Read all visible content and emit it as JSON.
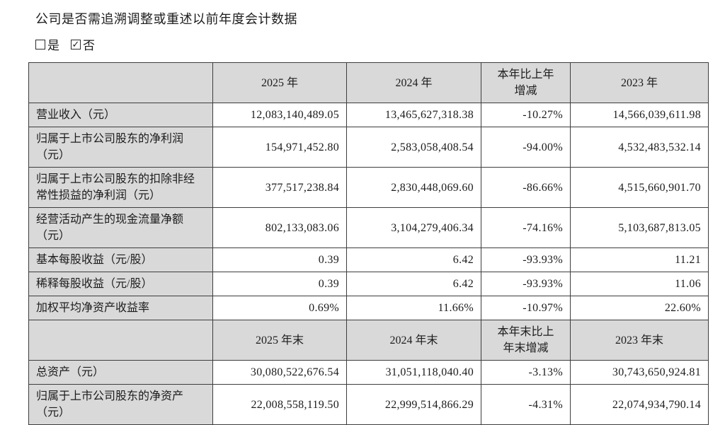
{
  "page": {
    "question": "公司是否需追溯调整或重述以前年度会计数据",
    "options": [
      {
        "label": "是",
        "checked": false
      },
      {
        "label": "否",
        "checked": true
      }
    ],
    "icons": {
      "checkmark": "✓"
    }
  },
  "table": {
    "period_header": [
      "",
      "2025 年",
      "2024 年",
      "本年比上年增减",
      "2023 年"
    ],
    "period_rows": [
      {
        "label": "营业收入（元）",
        "y2025": "12,083,140,489.05",
        "y2024": "13,465,627,318.38",
        "change": "-10.27%",
        "y2023": "14,566,039,611.98"
      },
      {
        "label": "归属于上市公司股东的净利润（元）",
        "y2025": "154,971,452.80",
        "y2024": "2,583,058,408.54",
        "change": "-94.00%",
        "y2023": "4,532,483,532.14"
      },
      {
        "label": "归属于上市公司股东的扣除非经常性损益的净利润（元）",
        "y2025": "377,517,238.84",
        "y2024": "2,830,448,069.60",
        "change": "-86.66%",
        "y2023": "4,515,660,901.70"
      },
      {
        "label": "经营活动产生的现金流量净额（元）",
        "y2025": "802,133,083.06",
        "y2024": "3,104,279,406.34",
        "change": "-74.16%",
        "y2023": "5,103,687,813.05"
      },
      {
        "label": "基本每股收益（元/股）",
        "y2025": "0.39",
        "y2024": "6.42",
        "change": "-93.93%",
        "y2023": "11.21"
      },
      {
        "label": "稀释每股收益（元/股）",
        "y2025": "0.39",
        "y2024": "6.42",
        "change": "-93.93%",
        "y2023": "11.06"
      },
      {
        "label": "加权平均净资产收益率",
        "y2025": "0.69%",
        "y2024": "11.66%",
        "change": "-10.97%",
        "y2023": "22.60%"
      }
    ],
    "yearend_header": [
      "",
      "2025 年末",
      "2024 年末",
      "本年末比上年末增减",
      "2023 年末"
    ],
    "yearend_rows": [
      {
        "label": "总资产（元）",
        "y2025": "30,080,522,676.54",
        "y2024": "31,051,118,040.40",
        "change": "-3.13%",
        "y2023": "30,743,650,924.81"
      },
      {
        "label": "归属于上市公司股东的净资产（元）",
        "y2025": "22,008,558,119.50",
        "y2024": "22,999,514,866.29",
        "change": "-4.31%",
        "y2023": "22,074,934,790.14"
      }
    ]
  }
}
